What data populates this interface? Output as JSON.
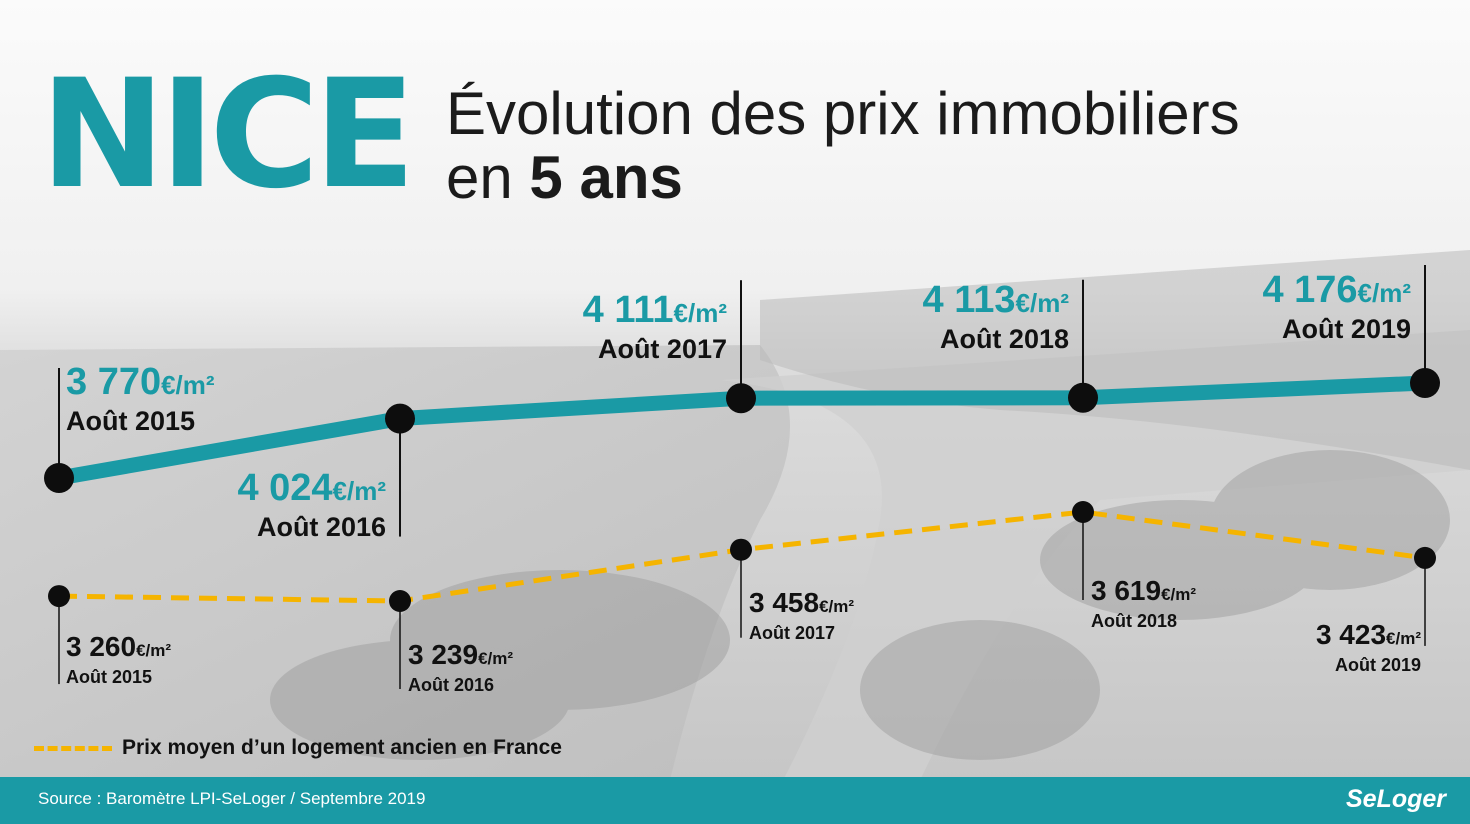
{
  "header": {
    "city": "NICE",
    "title_line1": "Évolution des prix immobiliers",
    "title_line2_prefix": "en",
    "title_line2_bold": "5 ans"
  },
  "unit": "€/m²",
  "colors": {
    "teal": "#1a9aa5",
    "yellow": "#f5b400",
    "dark": "#111111",
    "footer_bg": "#1a9aa5"
  },
  "chart_data": {
    "type": "line",
    "categories": [
      "Août 2015",
      "Août 2016",
      "Août 2017",
      "Août 2018",
      "Août 2019"
    ],
    "series": [
      {
        "values": [
          3770,
          4024,
          4111,
          4113,
          4176
        ],
        "labels": [
          "3 770",
          "4 024",
          "4 111",
          "4 113",
          "4 176"
        ],
        "color": "#1a9aa5",
        "style": "solid"
      },
      {
        "name": "Prix moyen d’un logement ancien en France",
        "values": [
          3260,
          3239,
          3458,
          3619,
          3423
        ],
        "labels": [
          "3 260",
          "3 239",
          "3 458",
          "3 619",
          "3 423"
        ],
        "color": "#f5b400",
        "style": "dashed"
      }
    ],
    "unit": "€/m²",
    "legend": "bottom-left"
  },
  "legend": {
    "label": "Prix moyen d’un logement ancien en France"
  },
  "footer": {
    "source": "Source : Baromètre LPI-SeLoger / Septembre 2019",
    "brand": "SeLoger"
  }
}
